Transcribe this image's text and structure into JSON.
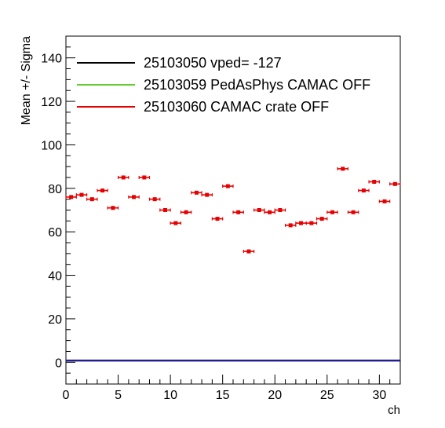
{
  "chart_data": {
    "type": "scatter",
    "xlabel": "ch",
    "ylabel": "Mean +/- Sigma",
    "xlim": [
      0,
      32
    ],
    "ylim": [
      -10,
      150
    ],
    "x_ticks": [
      0,
      5,
      10,
      15,
      20,
      25,
      30
    ],
    "y_ticks": [
      0,
      20,
      40,
      60,
      80,
      100,
      120,
      140
    ],
    "grid": false,
    "legend_position": "top-left",
    "series": [
      {
        "name": "25103050 vped= -127",
        "color": "#000000",
        "style": "line",
        "x": [
          0,
          32
        ],
        "y": [
          0.8,
          0.8
        ]
      },
      {
        "name": "25103059 PedAsPhys CAMAC OFF",
        "color": "#66cc33",
        "style": "line",
        "x": [
          0,
          32
        ],
        "y": [
          0.8,
          0.8
        ]
      },
      {
        "name": "25103060 CAMAC crate OFF",
        "color": "#e60000",
        "style": "markers",
        "x": [
          0.5,
          1.5,
          2.5,
          3.5,
          4.5,
          5.5,
          6.5,
          7.5,
          8.5,
          9.5,
          10.5,
          11.5,
          12.5,
          13.5,
          14.5,
          15.5,
          16.5,
          17.5,
          18.5,
          19.5,
          20.5,
          21.5,
          22.5,
          23.5,
          24.5,
          25.5,
          26.5,
          27.5,
          28.5,
          29.5,
          30.5,
          31.5
        ],
        "y": [
          76,
          77,
          75,
          79,
          71,
          85,
          76,
          85,
          75,
          70,
          64,
          69,
          78,
          77,
          66,
          81,
          69,
          51,
          70,
          69,
          70,
          63,
          64,
          64,
          66,
          69,
          89,
          69,
          79,
          83,
          74,
          82
        ]
      }
    ],
    "baseline": {
      "color": "#1f1f8f",
      "y": 0.8
    }
  }
}
